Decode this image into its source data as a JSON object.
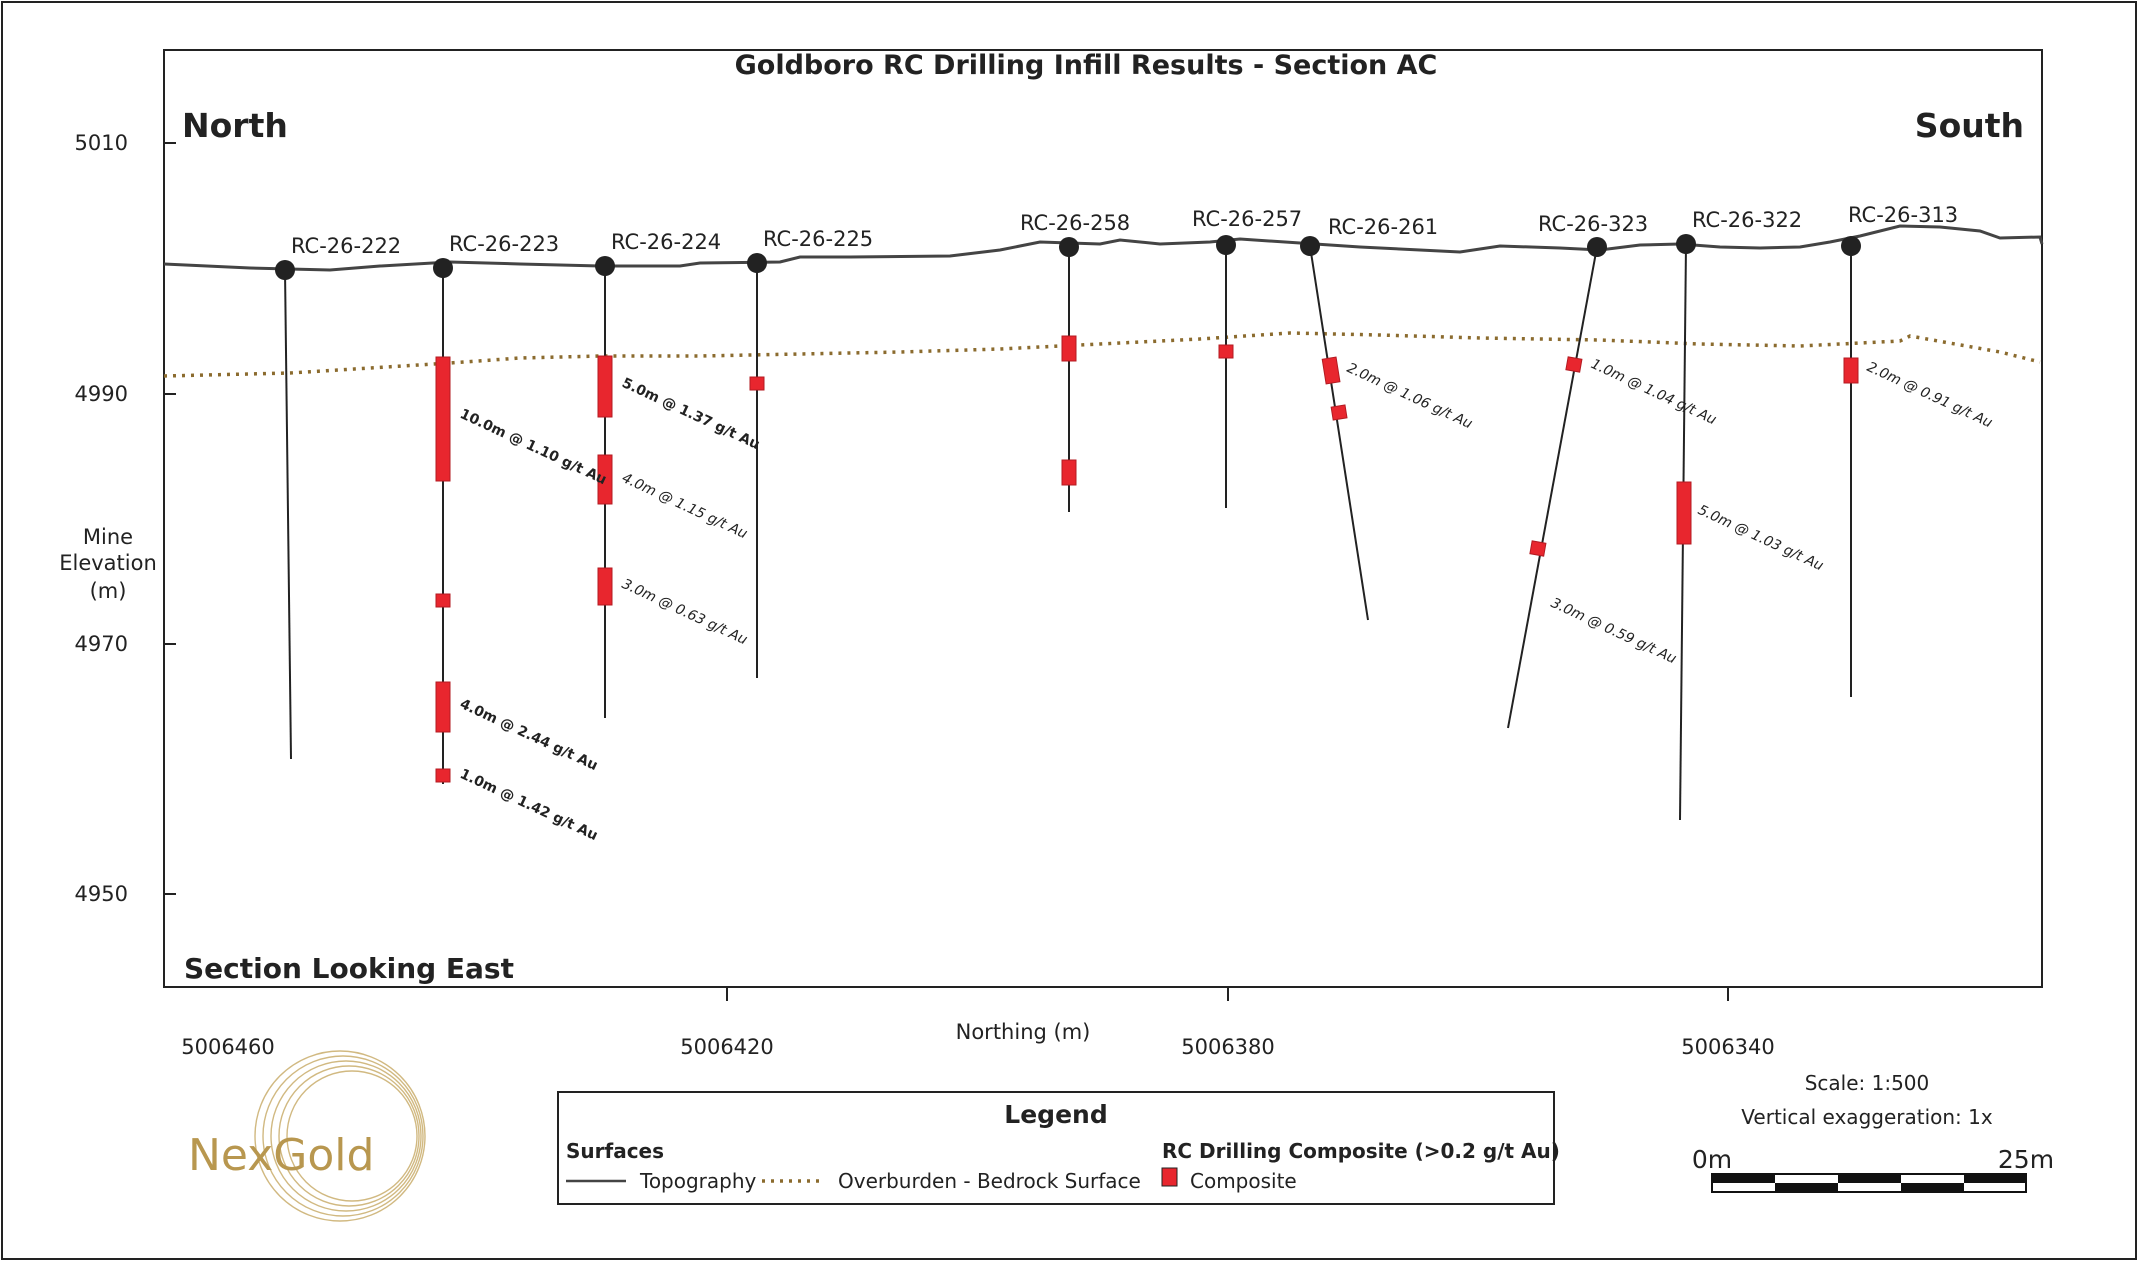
{
  "title": "Goldboro RC Drilling Infill Results - Section AC",
  "direction": {
    "left": "North",
    "right": "South"
  },
  "view_label": "Section Looking East",
  "y_axis": {
    "label_lines": [
      "Mine",
      "Elevation",
      "(m)"
    ],
    "ticks": [
      "5010",
      "4990",
      "4970",
      "4950"
    ]
  },
  "x_axis": {
    "label": "Northing (m)",
    "ticks": [
      "5006460",
      "5006420",
      "5006380",
      "5006340"
    ]
  },
  "holes": [
    {
      "id": "RC-26-222"
    },
    {
      "id": "RC-26-223"
    },
    {
      "id": "RC-26-224"
    },
    {
      "id": "RC-26-225"
    },
    {
      "id": "RC-26-258"
    },
    {
      "id": "RC-26-257"
    },
    {
      "id": "RC-26-261"
    },
    {
      "id": "RC-26-323"
    },
    {
      "id": "RC-26-322"
    },
    {
      "id": "RC-26-313"
    }
  ],
  "annotations": [
    {
      "text": "10.0m @ 1.10 g/t Au",
      "bold": true
    },
    {
      "text": "4.0m @ 2.44 g/t Au",
      "bold": true
    },
    {
      "text": "1.0m @ 1.42 g/t Au",
      "bold": true
    },
    {
      "text": "5.0m @ 1.37 g/t Au",
      "bold": true
    },
    {
      "text": "4.0m @ 1.15 g/t Au",
      "bold": false
    },
    {
      "text": "3.0m @ 0.63 g/t Au",
      "bold": false
    },
    {
      "text": "2.0m @ 1.06 g/t Au",
      "bold": false
    },
    {
      "text": "1.0m @ 1.04 g/t Au",
      "bold": false
    },
    {
      "text": "3.0m @ 0.59 g/t Au",
      "bold": false
    },
    {
      "text": "5.0m @ 1.03 g/t Au",
      "bold": false
    },
    {
      "text": "2.0m @ 0.91 g/t Au",
      "bold": false
    }
  ],
  "legend": {
    "title": "Legend",
    "surfaces_heading": "Surfaces",
    "topography": "Topography",
    "overburden": "Overburden - Bedrock Surface",
    "composite_heading": "RC Drilling Composite (>0.2 g/t Au)",
    "composite": "Composite"
  },
  "scale": {
    "ratio": "Scale: 1:500",
    "exaggeration": "Vertical exaggeration: 1x",
    "start": "0m",
    "end": "25m"
  },
  "logo": {
    "text": "NexGold"
  },
  "colors": {
    "composite": "#e8262e",
    "overburden": "#8b6b2e",
    "topography": "#444444",
    "logo_gold": "#b8974f"
  }
}
